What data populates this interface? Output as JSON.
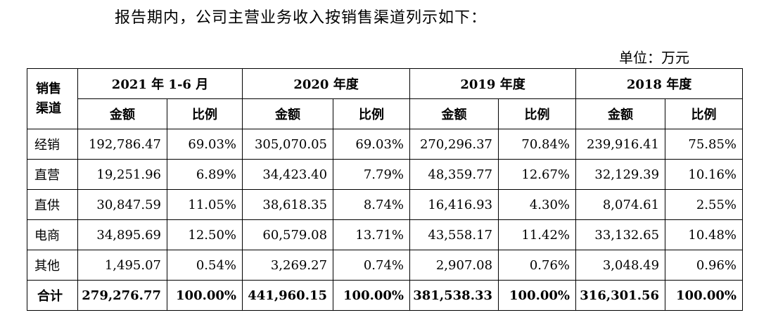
{
  "intro": "报告期内，公司主营业务收入按销售渠道列示如下：",
  "unit": "单位：万元",
  "table": {
    "corner": [
      "销售",
      "渠道"
    ],
    "periods": [
      "2021 年 1-6 月",
      "2020 年度",
      "2019 年度",
      "2018 年度"
    ],
    "sub_headers": [
      "金额",
      "比例"
    ],
    "rows": [
      {
        "label": "经销",
        "values": [
          "192,786.47",
          "69.03%",
          "305,070.05",
          "69.03%",
          "270,296.37",
          "70.84%",
          "239,916.41",
          "75.85%"
        ]
      },
      {
        "label": "直营",
        "values": [
          "19,251.96",
          "6.89%",
          "34,423.40",
          "7.79%",
          "48,359.77",
          "12.67%",
          "32,129.39",
          "10.16%"
        ]
      },
      {
        "label": "直供",
        "values": [
          "30,847.59",
          "11.05%",
          "38,618.35",
          "8.74%",
          "16,416.93",
          "4.30%",
          "8,074.61",
          "2.55%"
        ]
      },
      {
        "label": "电商",
        "values": [
          "34,895.69",
          "12.50%",
          "60,579.08",
          "13.71%",
          "43,558.17",
          "11.42%",
          "33,132.65",
          "10.48%"
        ]
      },
      {
        "label": "其他",
        "values": [
          "1,495.07",
          "0.54%",
          "3,269.27",
          "0.74%",
          "2,907.08",
          "0.76%",
          "3,048.49",
          "0.96%"
        ]
      }
    ],
    "total": {
      "label": "合计",
      "values": [
        "279,276.77",
        "100.00%",
        "441,960.15",
        "100.00%",
        "381,538.33",
        "100.00%",
        "316,301.56",
        "100.00%"
      ]
    }
  }
}
